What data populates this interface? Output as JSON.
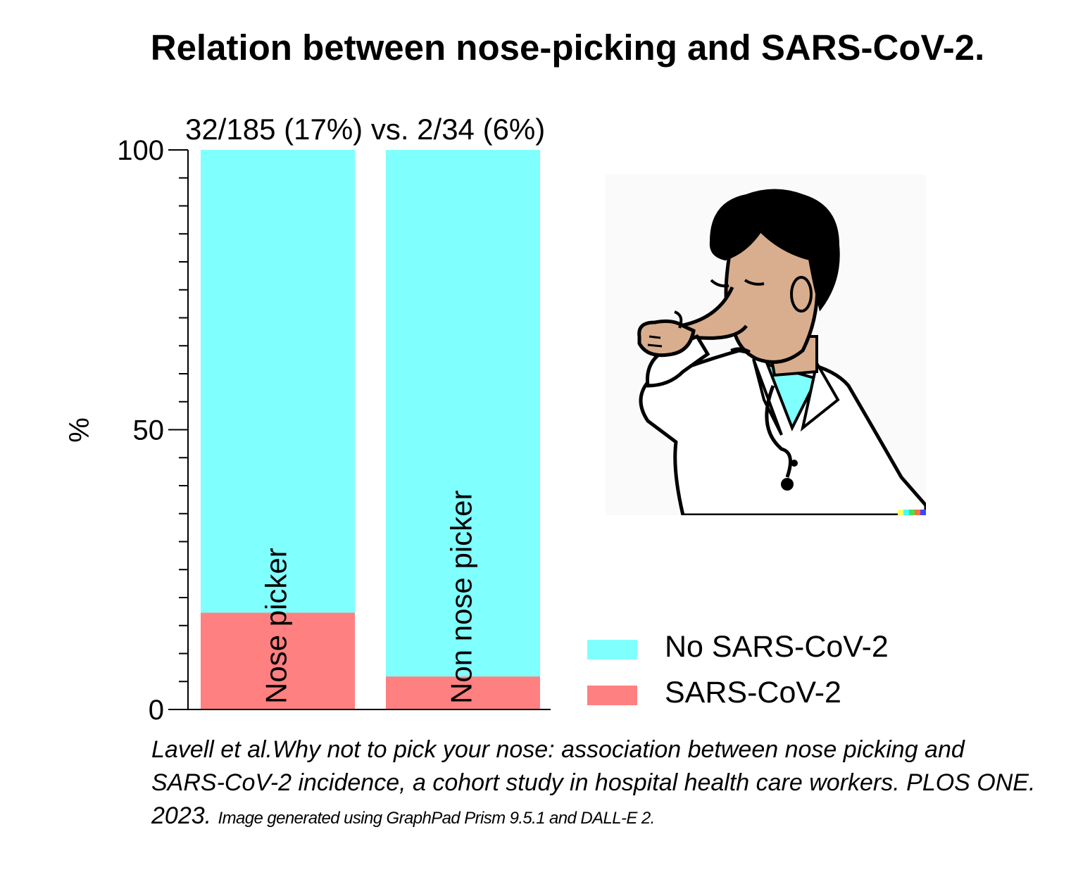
{
  "chart_data": {
    "type": "bar",
    "stacked": true,
    "title": "Relation between nose-picking and SARS-CoV-2.",
    "annotation": "32/185 (17%) vs. 2/34 (6%)",
    "ylabel": "%",
    "xlabel": "",
    "ylim": [
      0,
      100
    ],
    "yticks": [
      0,
      50,
      100
    ],
    "categories": [
      "Nose picker",
      "Non nose picker"
    ],
    "series": [
      {
        "name": "SARS-CoV-2",
        "values": [
          17.3,
          5.9
        ],
        "color": "#FF8080"
      },
      {
        "name": "No SARS-CoV-2",
        "values": [
          82.7,
          94.1
        ],
        "color": "#80FFFF"
      }
    ],
    "legend": {
      "placement": "bottom-right",
      "order": [
        "No SARS-CoV-2",
        "SARS-CoV-2"
      ]
    },
    "grid": false
  },
  "citation": {
    "main": "Lavell et al.Why not to pick your nose: association between nose picking and SARS-CoV-2 incidence, a cohort study in hospital health care workers. PLOS ONE. 2023.",
    "note": "Image generated using GraphPad Prism 9.5.1 and DALL-E 2."
  },
  "illustration": {
    "icon": "doctor-picking-nose-illustration",
    "skin": "#D9AE8E",
    "hair": "#000000",
    "coat": "#FFFFFF",
    "accent": "#80FFFF"
  }
}
